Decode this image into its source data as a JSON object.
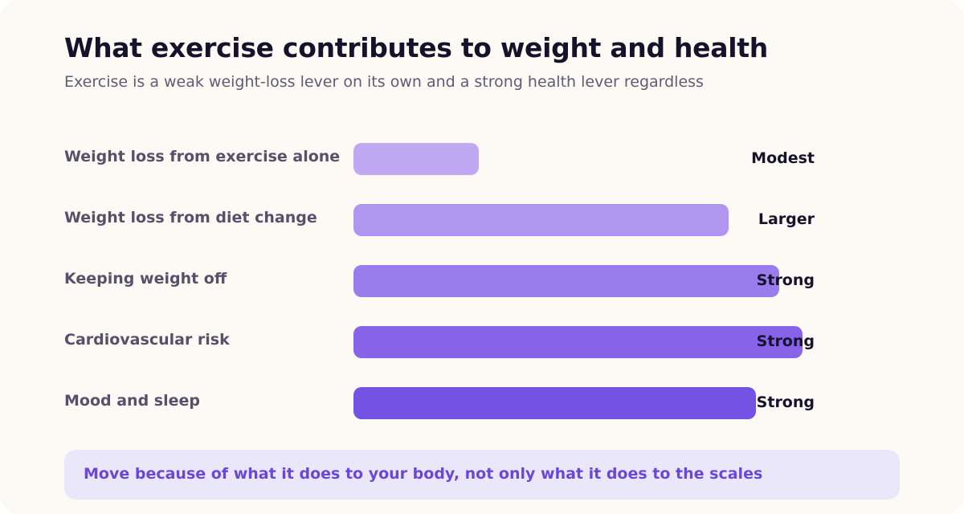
{
  "header": {
    "title": "What exercise contributes to weight and health",
    "subtitle": "Exercise is a weak weight-loss lever on its own and a strong health lever regardless"
  },
  "chart_data": {
    "type": "bar",
    "orientation": "horizontal",
    "title": "What exercise contributes to weight and health",
    "subtitle": "Exercise is a weak weight-loss lever on its own and a strong health lever regardless",
    "categories": [
      "Weight loss from exercise alone",
      "Weight loss from diet change",
      "Keeping weight off",
      "Cardiovascular risk",
      "Mood and sleep"
    ],
    "values": [
      27,
      81,
      92,
      97,
      87
    ],
    "value_labels": [
      "Modest",
      "Larger",
      "Strong",
      "Strong",
      "Strong"
    ],
    "xlim": [
      0,
      100
    ],
    "grid": false,
    "legend": "none",
    "colors": [
      "#c0a8f3",
      "#b096f0",
      "#9a7ded",
      "#8763e9",
      "#7352e4"
    ]
  },
  "callout": {
    "text": "Move because of what it does to your body, not only what it does to the scales"
  }
}
